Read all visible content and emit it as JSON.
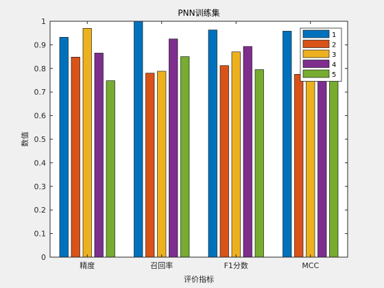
{
  "chart_data": {
    "type": "bar",
    "title": "PNN训练集",
    "xlabel": "评价指标",
    "ylabel": "数值",
    "categories": [
      "精度",
      "召回率",
      "F1分数",
      "MCC"
    ],
    "ylim": [
      0,
      1
    ],
    "yticks": [
      0,
      0.1,
      0.2,
      0.3,
      0.4,
      0.5,
      0.6,
      0.7,
      0.8,
      0.9,
      1
    ],
    "ytick_labels": [
      "0",
      "0.1",
      "0.2",
      "0.3",
      "0.4",
      "0.5",
      "0.6",
      "0.7",
      "0.8",
      "0.9",
      "1"
    ],
    "grid": false,
    "legend_position": "top-right",
    "series": [
      {
        "name": "1",
        "color": "#0072BD",
        "values": [
          0.932,
          1.0,
          0.963,
          0.958
        ]
      },
      {
        "name": "2",
        "color": "#D95319",
        "values": [
          0.848,
          0.78,
          0.812,
          0.775
        ]
      },
      {
        "name": "3",
        "color": "#EDB120",
        "values": [
          0.97,
          0.788,
          0.87,
          0.855
        ]
      },
      {
        "name": "4",
        "color": "#7E2F8E",
        "values": [
          0.865,
          0.925,
          0.893,
          0.905
        ]
      },
      {
        "name": "5",
        "color": "#77AC30",
        "values": [
          0.748,
          0.85,
          0.795,
          0.8
        ]
      }
    ]
  }
}
